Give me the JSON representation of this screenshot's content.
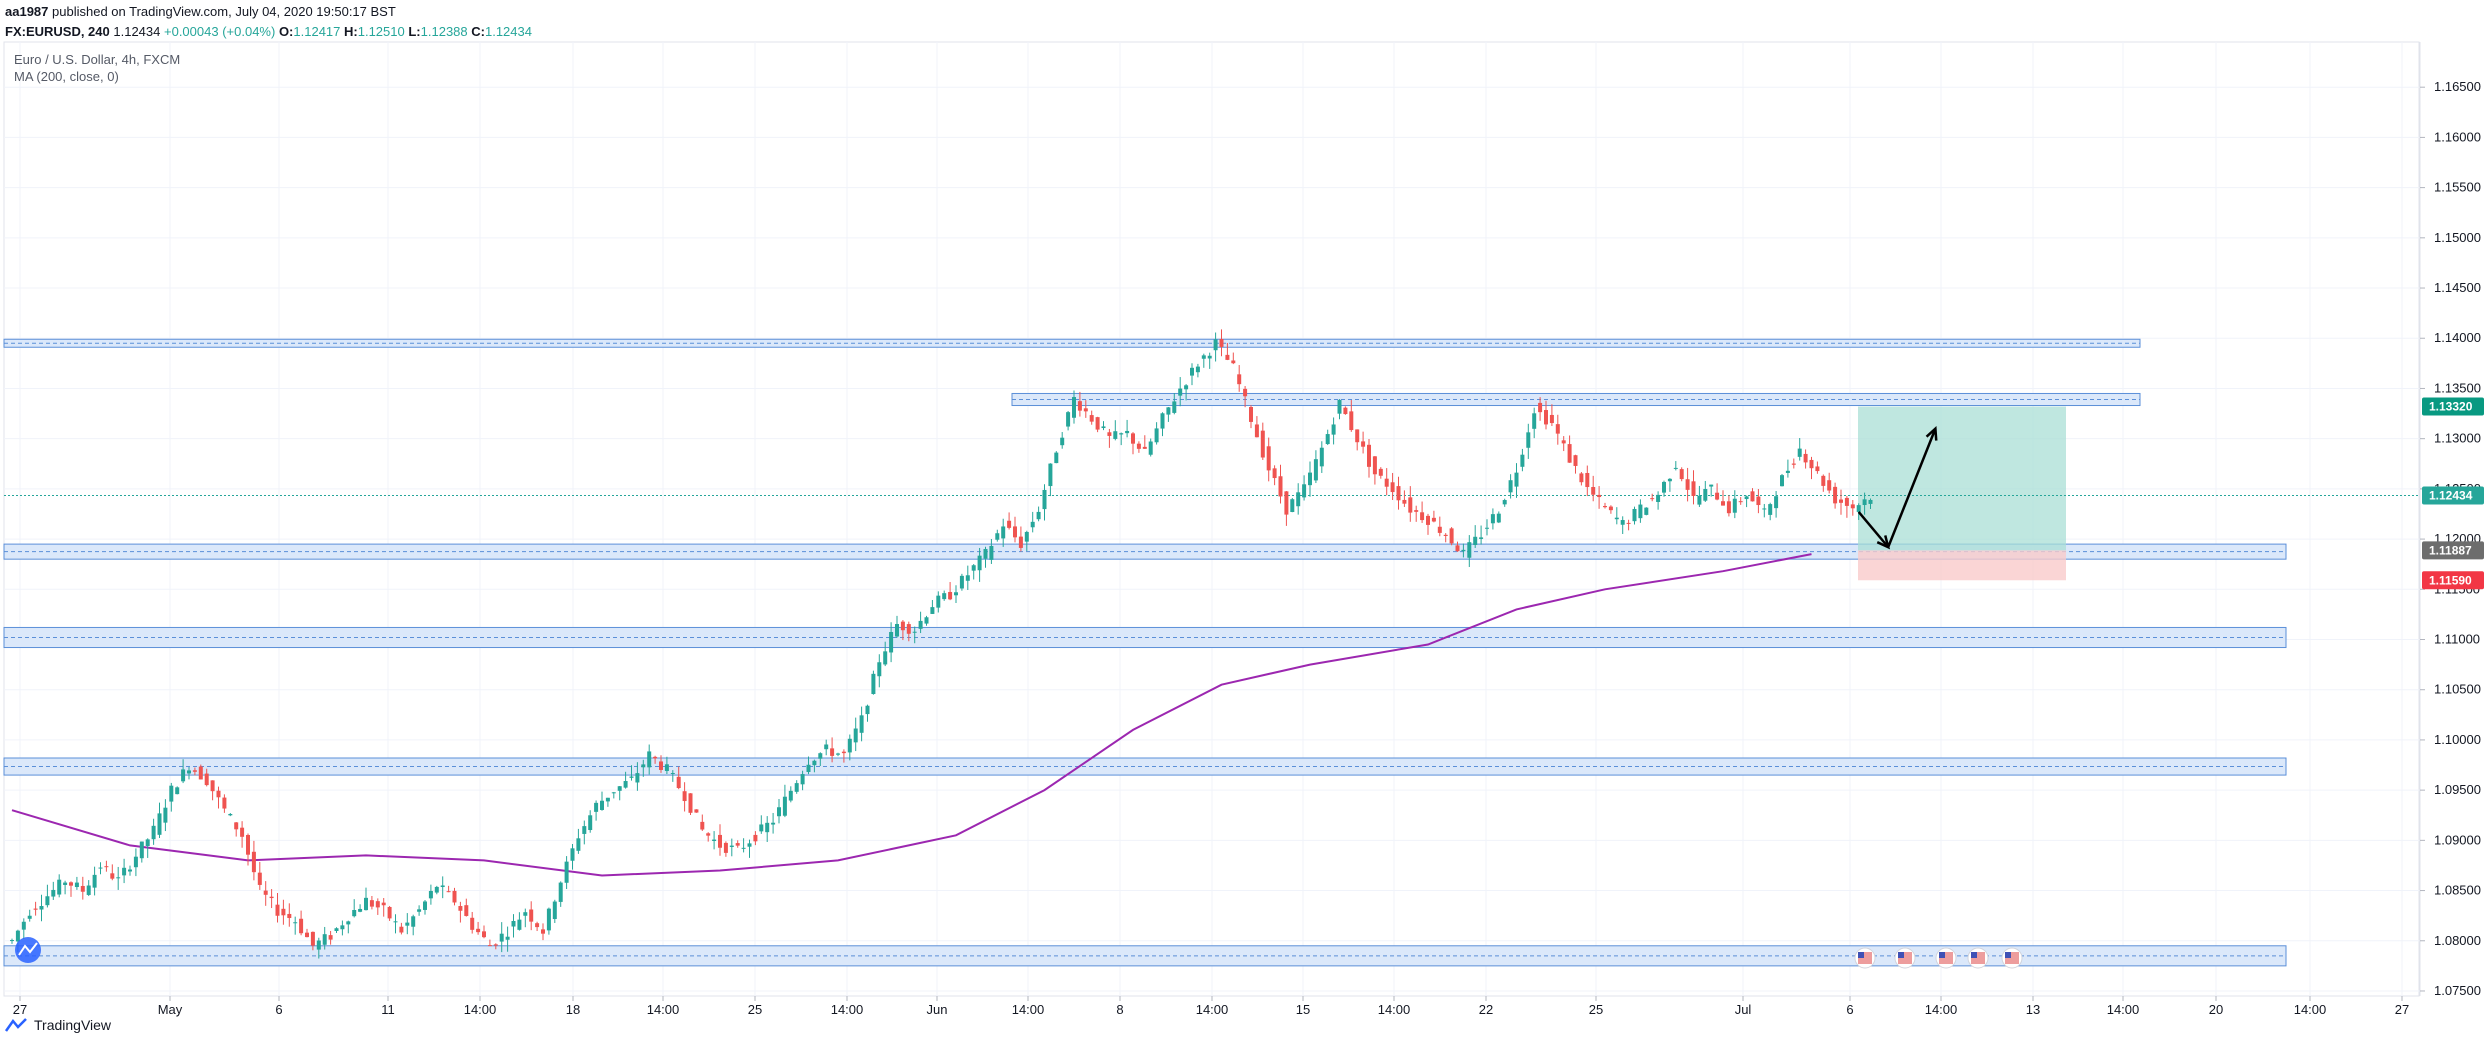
{
  "header": {
    "author": "aa1987",
    "published_text": "published on TradingView.com, July 04, 2020 19:50:17 BST",
    "symbol_line": "FX:EURUSD, 240",
    "last": "1.12434",
    "change": "+0.00043 (+0.04%)",
    "o_label": "O:",
    "o_val": "1.12417",
    "h_label": "H:",
    "h_val": "1.12510",
    "l_label": "L:",
    "l_val": "1.12388",
    "c_label": "C:",
    "c_val": "1.12434"
  },
  "legend": {
    "title": "Euro / U.S. Dollar, 4h, FXCM",
    "indicator": "MA (200, close, 0)"
  },
  "footer": {
    "brand": "TradingView"
  },
  "colors": {
    "up": "#26a69a",
    "down": "#ef5350",
    "ma": "#9c27b0",
    "zone_fill": "#dbe8fa",
    "zone_border": "#5b8fd8",
    "target": "#aadfd6",
    "stop": "#f9caca",
    "tag_target": "#089981",
    "tag_price": "#26a69a",
    "tag_entry": "#6d6d6d",
    "tag_stop": "#f23645"
  },
  "chart_data": {
    "type": "candlestick",
    "symbol": "EURUSD",
    "interval": "4h",
    "ylim": [
      1.0745,
      1.1695
    ],
    "y_ticks": [
      "1.07500",
      "1.08000",
      "1.08500",
      "1.09000",
      "1.09500",
      "1.10000",
      "1.10500",
      "1.11000",
      "1.11500",
      "1.12000",
      "1.12500",
      "1.13000",
      "1.13500",
      "1.14000",
      "1.14500",
      "1.15000",
      "1.15500",
      "1.16000",
      "1.16500"
    ],
    "x_labels": [
      "27",
      "May",
      "6",
      "11",
      "14:00",
      "18",
      "14:00",
      "25",
      "14:00",
      "Jun",
      "14:00",
      "8",
      "14:00",
      "15",
      "14:00",
      "22",
      "25",
      "Jul",
      "6",
      "14:00",
      "13",
      "14:00",
      "20",
      "14:00",
      "27"
    ],
    "price_tags": {
      "target": "1.13320",
      "last": "1.12434",
      "entry": "1.11887",
      "stop": "1.11590"
    },
    "zones": [
      {
        "low": 1.1392,
        "high": 1.1399,
        "extends": "wide"
      },
      {
        "low": 1.1333,
        "high": 1.1345,
        "extends": "from-june"
      },
      {
        "low": 1.118,
        "high": 1.1195,
        "extends": "full"
      },
      {
        "low": 1.1092,
        "high": 1.1112,
        "extends": "full"
      },
      {
        "low": 1.0965,
        "high": 1.0982,
        "extends": "full"
      },
      {
        "low": 1.0775,
        "high": 1.0795,
        "extends": "full"
      }
    ],
    "ohlc_path": [
      [
        0,
        1.08
      ],
      [
        3,
        1.083
      ],
      [
        6,
        1.0845
      ],
      [
        9,
        1.086
      ],
      [
        12,
        1.085
      ],
      [
        15,
        1.0875
      ],
      [
        18,
        1.086
      ],
      [
        21,
        1.0885
      ],
      [
        24,
        1.091
      ],
      [
        27,
        1.095
      ],
      [
        30,
        1.0975
      ],
      [
        33,
        1.096
      ],
      [
        36,
        1.093
      ],
      [
        39,
        1.0905
      ],
      [
        42,
        1.085
      ],
      [
        45,
        1.083
      ],
      [
        48,
        1.082
      ],
      [
        51,
        1.0795
      ],
      [
        54,
        1.0805
      ],
      [
        57,
        1.0825
      ],
      [
        60,
        1.084
      ],
      [
        63,
        1.083
      ],
      [
        66,
        1.081
      ],
      [
        69,
        1.083
      ],
      [
        72,
        1.0855
      ],
      [
        75,
        1.084
      ],
      [
        78,
        1.0815
      ],
      [
        81,
        1.0795
      ],
      [
        84,
        1.081
      ],
      [
        87,
        1.083
      ],
      [
        90,
        1.081
      ],
      [
        93,
        1.086
      ],
      [
        96,
        1.0905
      ],
      [
        99,
        1.0935
      ],
      [
        102,
        1.095
      ],
      [
        105,
        1.096
      ],
      [
        108,
        1.0985
      ],
      [
        111,
        1.097
      ],
      [
        114,
        1.0945
      ],
      [
        117,
        1.091
      ],
      [
        120,
        1.0895
      ],
      [
        123,
        1.089
      ],
      [
        126,
        1.0905
      ],
      [
        129,
        1.092
      ],
      [
        132,
        1.095
      ],
      [
        135,
        1.098
      ],
      [
        138,
        1.099
      ],
      [
        141,
        1.0985
      ],
      [
        144,
        1.102
      ],
      [
        147,
        1.108
      ],
      [
        150,
        1.1115
      ],
      [
        153,
        1.111
      ],
      [
        156,
        1.1135
      ],
      [
        159,
        1.1145
      ],
      [
        162,
        1.1165
      ],
      [
        165,
        1.1185
      ],
      [
        168,
        1.1215
      ],
      [
        171,
        1.1195
      ],
      [
        174,
        1.123
      ],
      [
        177,
        1.129
      ],
      [
        180,
        1.134
      ],
      [
        183,
        1.132
      ],
      [
        186,
        1.13
      ],
      [
        189,
        1.1305
      ],
      [
        192,
        1.1285
      ],
      [
        195,
        1.132
      ],
      [
        198,
        1.135
      ],
      [
        201,
        1.1375
      ],
      [
        204,
        1.1395
      ],
      [
        207,
        1.137
      ],
      [
        210,
        1.132
      ],
      [
        213,
        1.127
      ],
      [
        216,
        1.123
      ],
      [
        219,
        1.125
      ],
      [
        222,
        1.129
      ],
      [
        225,
        1.1335
      ],
      [
        228,
        1.13
      ],
      [
        231,
        1.1265
      ],
      [
        234,
        1.125
      ],
      [
        237,
        1.123
      ],
      [
        240,
        1.122
      ],
      [
        243,
        1.1205
      ],
      [
        246,
        1.1185
      ],
      [
        249,
        1.1205
      ],
      [
        252,
        1.123
      ],
      [
        255,
        1.127
      ],
      [
        258,
        1.133
      ],
      [
        261,
        1.1315
      ],
      [
        264,
        1.128
      ],
      [
        267,
        1.125
      ],
      [
        270,
        1.123
      ],
      [
        273,
        1.1215
      ],
      [
        276,
        1.123
      ],
      [
        279,
        1.1245
      ],
      [
        282,
        1.1275
      ],
      [
        285,
        1.124
      ],
      [
        288,
        1.125
      ],
      [
        291,
        1.123
      ],
      [
        294,
        1.1245
      ],
      [
        297,
        1.1225
      ],
      [
        300,
        1.126
      ],
      [
        303,
        1.129
      ],
      [
        306,
        1.1265
      ],
      [
        309,
        1.124
      ],
      [
        312,
        1.1232
      ],
      [
        315,
        1.1243
      ]
    ],
    "ma_points": [
      [
        0,
        1.093
      ],
      [
        20,
        1.0895
      ],
      [
        40,
        1.088
      ],
      [
        60,
        1.0885
      ],
      [
        80,
        1.088
      ],
      [
        100,
        1.0865
      ],
      [
        120,
        1.087
      ],
      [
        140,
        1.088
      ],
      [
        160,
        1.0905
      ],
      [
        175,
        1.095
      ],
      [
        190,
        1.101
      ],
      [
        205,
        1.1055
      ],
      [
        220,
        1.1075
      ],
      [
        240,
        1.1095
      ],
      [
        255,
        1.113
      ],
      [
        270,
        1.115
      ],
      [
        290,
        1.1168
      ],
      [
        305,
        1.1185
      ]
    ],
    "annotations": [
      {
        "type": "arrow",
        "from_index": 313,
        "from_price": 1.1227,
        "to_index": 318,
        "to_price": 1.1192
      },
      {
        "type": "arrow",
        "from_index": 318,
        "from_price": 1.1192,
        "to_index": 326,
        "to_price": 1.131
      }
    ]
  }
}
